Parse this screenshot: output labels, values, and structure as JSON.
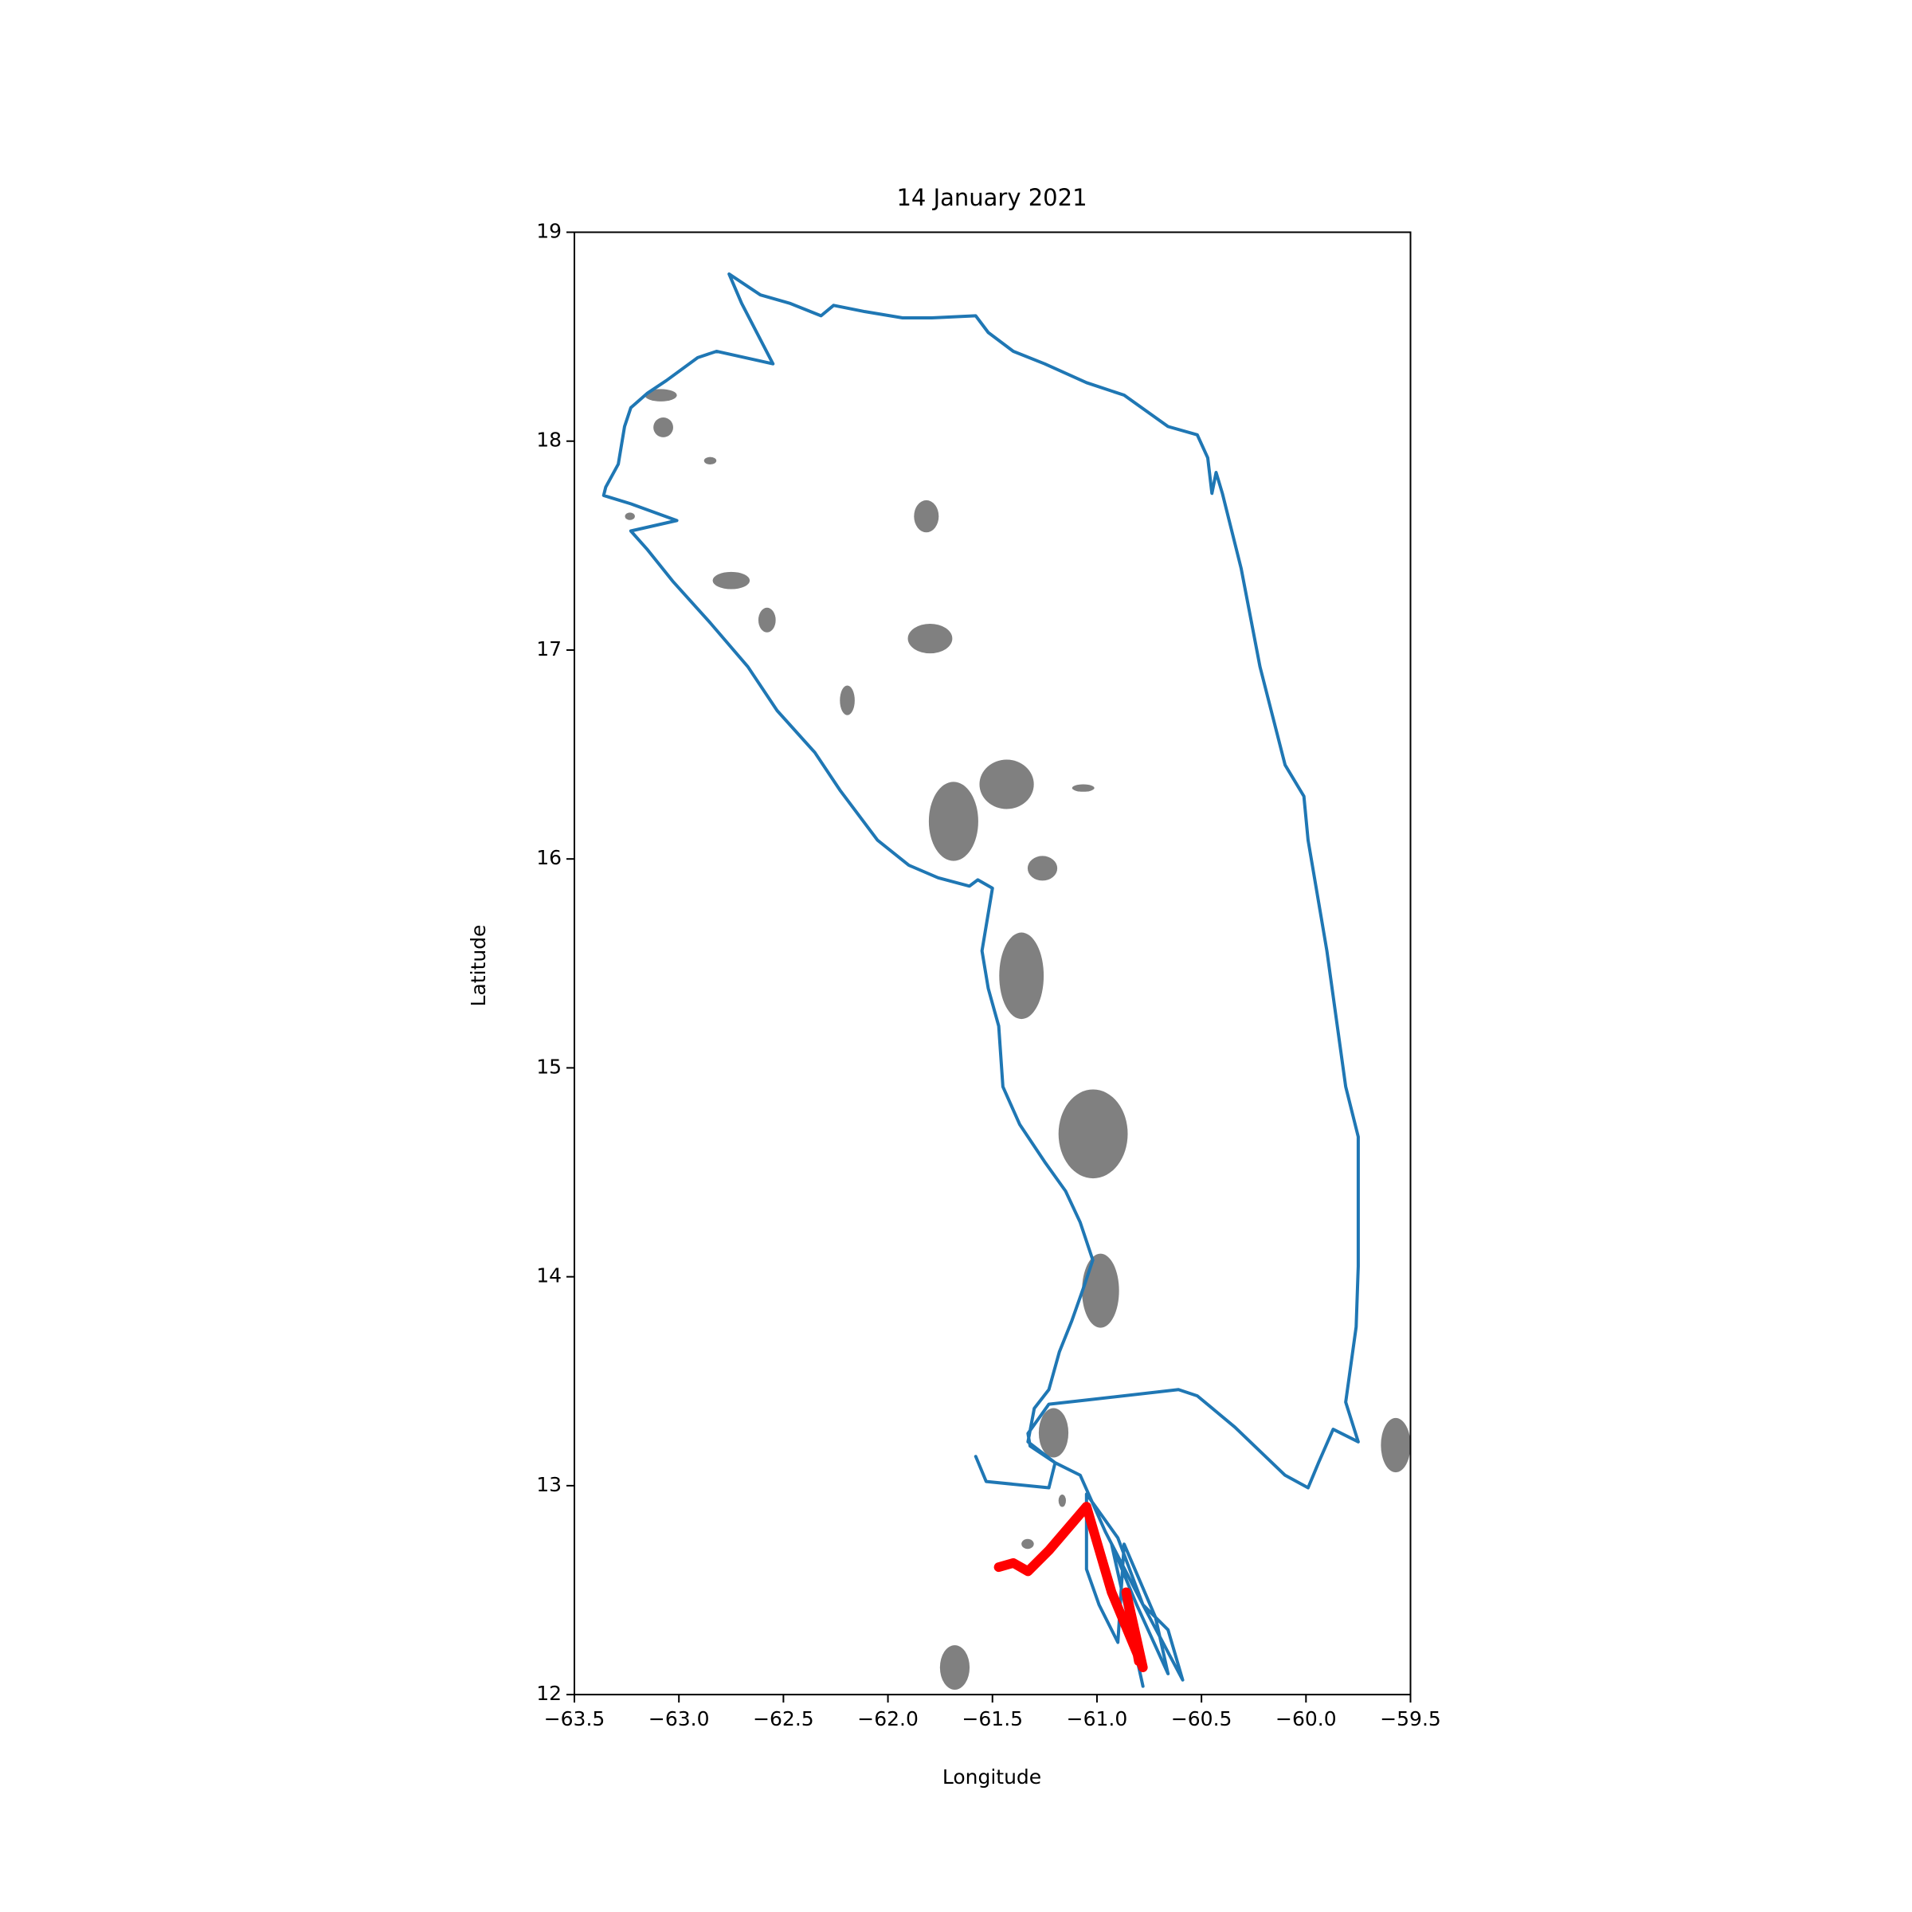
{
  "chart_data": {
    "type": "line",
    "title": "14 January 2021",
    "x_label": "Longitude",
    "y_label": "Latitude",
    "xlim": [
      -63.5,
      -59.5
    ],
    "xticks": [
      {
        "value": -63.5,
        "label": "−63.5"
      },
      {
        "value": -63.0,
        "label": "−63.0"
      },
      {
        "value": -62.5,
        "label": "−62.5"
      },
      {
        "value": -62.0,
        "label": "−62.0"
      },
      {
        "value": -61.5,
        "label": "−61.5"
      },
      {
        "value": -61.0,
        "label": "−61.0"
      },
      {
        "value": -60.5,
        "label": "−60.5"
      },
      {
        "value": -60.0,
        "label": "−60.0"
      },
      {
        "value": -59.5,
        "label": "−59.5"
      }
    ],
    "ylim": [
      12,
      19
    ],
    "yticks": [
      12,
      13,
      14,
      15,
      16,
      17,
      18,
      19
    ],
    "series": [
      {
        "color": "#1f77b4",
        "x": [
          -61.58,
          -61.53,
          -61.23,
          -61.2,
          -61.32,
          -61.33,
          -61.23,
          -61.05,
          -60.61,
          -60.52,
          -60.34,
          -60.1,
          -59.99,
          -59.94,
          -59.87,
          -59.75,
          -59.81,
          -59.76,
          -59.75,
          -59.75,
          -59.81,
          -59.9,
          -59.99,
          -60.01,
          -60.1,
          -60.22,
          -60.31,
          -60.4,
          -60.43,
          -60.45,
          -60.47,
          -60.52,
          -60.66,
          -60.87,
          -61.05,
          -61.25,
          -61.4,
          -61.52,
          -61.58,
          -61.79,
          -61.93,
          -62.11,
          -62.26,
          -62.32,
          -62.47,
          -62.61,
          -62.76,
          -62.7,
          -62.55,
          -62.82,
          -62.91,
          -63.06,
          -63.15,
          -63.23,
          -63.26,
          -63.29,
          -63.35,
          -63.36,
          -63.23,
          -63.01,
          -63.23,
          -63.15,
          -63.03,
          -62.85,
          -62.67,
          -62.53,
          -62.35,
          -62.23,
          -62.05,
          -61.9,
          -61.76,
          -61.61,
          -61.57,
          -61.5,
          -61.52,
          -61.55,
          -61.52,
          -61.47,
          -61.45,
          -61.37,
          -61.25,
          -61.15,
          -61.08,
          -61.02,
          -61.06,
          -61.12,
          -61.18,
          -61.23,
          -61.3,
          -61.33,
          -61.2,
          -61.08,
          -60.96,
          -60.78,
          -60.66,
          -60.59,
          -60.78,
          -60.9,
          -61.05,
          -61.05,
          -60.99,
          -60.9,
          -60.87,
          -60.72,
          -60.66,
          -60.81,
          -60.93,
          -60.78
        ],
        "values": [
          13.14,
          13.02,
          12.99,
          13.11,
          13.19,
          13.25,
          13.39,
          13.41,
          13.46,
          13.43,
          13.28,
          13.05,
          12.99,
          13.11,
          13.27,
          13.21,
          13.4,
          13.76,
          14.05,
          14.67,
          14.91,
          15.56,
          16.09,
          16.3,
          16.45,
          16.92,
          17.39,
          17.75,
          17.85,
          17.75,
          17.92,
          18.03,
          18.07,
          18.22,
          18.28,
          18.37,
          18.43,
          18.52,
          18.6,
          18.59,
          18.59,
          18.62,
          18.65,
          18.6,
          18.66,
          18.7,
          18.8,
          18.66,
          18.37,
          18.43,
          18.4,
          18.29,
          18.23,
          18.16,
          18.07,
          17.89,
          17.78,
          17.74,
          17.7,
          17.62,
          17.57,
          17.48,
          17.33,
          17.13,
          16.92,
          16.71,
          16.51,
          16.33,
          16.09,
          15.97,
          15.91,
          15.87,
          15.9,
          15.86,
          15.74,
          15.56,
          15.38,
          15.2,
          14.91,
          14.73,
          14.55,
          14.41,
          14.26,
          14.08,
          13.96,
          13.79,
          13.64,
          13.46,
          13.37,
          13.21,
          13.11,
          13.05,
          12.78,
          12.43,
          12.31,
          12.07,
          12.43,
          12.75,
          12.96,
          12.6,
          12.43,
          12.25,
          12.72,
          12.37,
          12.1,
          12.43,
          12.72,
          12.04
        ]
      },
      {
        "color": "#ff0000",
        "x": [
          -61.47,
          -61.4,
          -61.33,
          -61.23,
          -61.05,
          -60.93,
          -60.78,
          -60.86,
          -60.8
        ],
        "values": [
          12.61,
          12.63,
          12.59,
          12.69,
          12.9,
          12.49,
          12.13,
          12.49,
          12.16
        ]
      }
    ]
  }
}
